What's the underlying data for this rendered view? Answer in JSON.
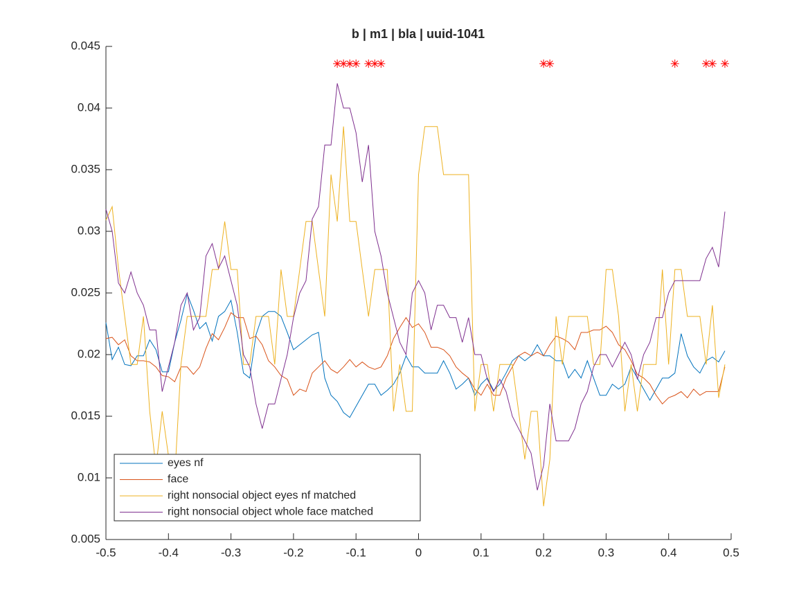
{
  "chart_data": {
    "type": "line",
    "title": "b | m1 | bla | uuid-1041",
    "x": [
      -0.5,
      -0.49,
      -0.48,
      -0.47,
      -0.46,
      -0.45,
      -0.44,
      -0.43,
      -0.42,
      -0.41,
      -0.4,
      -0.39,
      -0.38,
      -0.37,
      -0.36,
      -0.35,
      -0.34,
      -0.33,
      -0.32,
      -0.31,
      -0.3,
      -0.29,
      -0.28,
      -0.27,
      -0.26,
      -0.25,
      -0.24,
      -0.23,
      -0.22,
      -0.21,
      -0.2,
      -0.19,
      -0.18,
      -0.17,
      -0.16,
      -0.15,
      -0.14,
      -0.13,
      -0.12,
      -0.11,
      -0.1,
      -0.09,
      -0.08,
      -0.07,
      -0.06,
      -0.05,
      -0.04,
      -0.03,
      -0.02,
      -0.01,
      0,
      0.01,
      0.02,
      0.03,
      0.04,
      0.05,
      0.06,
      0.07,
      0.08,
      0.09,
      0.1,
      0.11,
      0.12,
      0.13,
      0.14,
      0.15,
      0.16,
      0.17,
      0.18,
      0.19,
      0.2,
      0.21,
      0.22,
      0.23,
      0.24,
      0.25,
      0.26,
      0.27,
      0.28,
      0.29,
      0.3,
      0.31,
      0.32,
      0.33,
      0.34,
      0.35,
      0.36,
      0.37,
      0.38,
      0.39,
      0.4,
      0.41,
      0.42,
      0.43,
      0.44,
      0.45,
      0.46,
      0.47,
      0.48,
      0.49
    ],
    "series": [
      {
        "name": "eyes nf",
        "color": "#0072bd",
        "values": [
          0.0226,
          0.0196,
          0.0206,
          0.0192,
          0.0191,
          0.0199,
          0.0199,
          0.0212,
          0.0204,
          0.0186,
          0.0186,
          0.021,
          0.0228,
          0.0249,
          0.0236,
          0.0221,
          0.0226,
          0.0211,
          0.0231,
          0.0235,
          0.0244,
          0.0218,
          0.0185,
          0.0181,
          0.0216,
          0.0231,
          0.0235,
          0.0235,
          0.0231,
          0.0218,
          0.0204,
          0.0208,
          0.0212,
          0.0216,
          0.0218,
          0.0181,
          0.0167,
          0.0162,
          0.0153,
          0.0149,
          0.0158,
          0.0167,
          0.0176,
          0.0176,
          0.0167,
          0.0171,
          0.0176,
          0.0185,
          0.0199,
          0.019,
          0.019,
          0.0185,
          0.0185,
          0.0185,
          0.0195,
          0.0185,
          0.0172,
          0.0176,
          0.0181,
          0.0167,
          0.0176,
          0.0181,
          0.0171,
          0.0176,
          0.0185,
          0.0195,
          0.0199,
          0.0195,
          0.0199,
          0.0208,
          0.0199,
          0.0199,
          0.0195,
          0.0195,
          0.0181,
          0.0188,
          0.0181,
          0.0195,
          0.0181,
          0.0167,
          0.0167,
          0.0176,
          0.0172,
          0.0176,
          0.019,
          0.0181,
          0.0172,
          0.0163,
          0.0172,
          0.0181,
          0.0181,
          0.0185,
          0.0217,
          0.0199,
          0.019,
          0.0185,
          0.0195,
          0.0198,
          0.0194,
          0.0203
        ]
      },
      {
        "name": "face",
        "color": "#d95319",
        "values": [
          0.0213,
          0.0214,
          0.0208,
          0.0212,
          0.0199,
          0.0195,
          0.0195,
          0.0194,
          0.019,
          0.0183,
          0.0182,
          0.0178,
          0.019,
          0.019,
          0.0184,
          0.019,
          0.0205,
          0.0217,
          0.0212,
          0.0222,
          0.0234,
          0.023,
          0.023,
          0.0213,
          0.0215,
          0.0208,
          0.0195,
          0.019,
          0.0183,
          0.018,
          0.0167,
          0.0172,
          0.017,
          0.0185,
          0.019,
          0.0195,
          0.0188,
          0.0185,
          0.019,
          0.0196,
          0.019,
          0.0194,
          0.019,
          0.0188,
          0.019,
          0.0199,
          0.0213,
          0.0222,
          0.023,
          0.0222,
          0.0225,
          0.0218,
          0.0206,
          0.0206,
          0.0204,
          0.0199,
          0.019,
          0.0185,
          0.0181,
          0.0172,
          0.0167,
          0.0176,
          0.0167,
          0.0167,
          0.0181,
          0.019,
          0.0199,
          0.0202,
          0.0199,
          0.0202,
          0.0199,
          0.0208,
          0.0215,
          0.0213,
          0.021,
          0.0204,
          0.0218,
          0.0218,
          0.022,
          0.022,
          0.0223,
          0.0218,
          0.0208,
          0.0204,
          0.0195,
          0.0184,
          0.0181,
          0.0176,
          0.0167,
          0.016,
          0.0165,
          0.0167,
          0.017,
          0.0165,
          0.0172,
          0.0167,
          0.017,
          0.017,
          0.017,
          0.019
        ]
      },
      {
        "name": "right nonsocial object eyes nf matched",
        "color": "#edb120",
        "values": [
          0.0309,
          0.032,
          0.027,
          0.0231,
          0.0192,
          0.0192,
          0.0231,
          0.0154,
          0.0108,
          0.0154,
          0.0118,
          0.01,
          0.0192,
          0.0231,
          0.0231,
          0.0231,
          0.0231,
          0.0269,
          0.0269,
          0.0308,
          0.0269,
          0.0269,
          0.0192,
          0.0192,
          0.0231,
          0.0231,
          0.0231,
          0.0192,
          0.0269,
          0.0231,
          0.0231,
          0.0269,
          0.0308,
          0.0308,
          0.0269,
          0.0231,
          0.0346,
          0.0308,
          0.0385,
          0.0308,
          0.0308,
          0.0269,
          0.0231,
          0.0269,
          0.0269,
          0.0269,
          0.0154,
          0.0192,
          0.0154,
          0.0154,
          0.0346,
          0.0385,
          0.0385,
          0.0385,
          0.0346,
          0.0346,
          0.0346,
          0.0346,
          0.0346,
          0.0154,
          0.0192,
          0.0192,
          0.0154,
          0.0192,
          0.0192,
          0.0192,
          0.0154,
          0.0115,
          0.0154,
          0.0154,
          0.0077,
          0.0115,
          0.0231,
          0.0192,
          0.0231,
          0.0231,
          0.0231,
          0.0231,
          0.0192,
          0.0192,
          0.0269,
          0.0269,
          0.0231,
          0.0154,
          0.0192,
          0.0154,
          0.0192,
          0.0192,
          0.0192,
          0.0269,
          0.0192,
          0.0269,
          0.0269,
          0.0231,
          0.0231,
          0.0231,
          0.0192,
          0.024,
          0.0165,
          0.0192
        ]
      },
      {
        "name": "right nonsocial object whole face matched",
        "color": "#7e2f8e",
        "values": [
          0.0318,
          0.03,
          0.0258,
          0.025,
          0.0267,
          0.025,
          0.024,
          0.022,
          0.022,
          0.017,
          0.019,
          0.021,
          0.024,
          0.025,
          0.022,
          0.023,
          0.028,
          0.029,
          0.027,
          0.028,
          0.026,
          0.024,
          0.02,
          0.019,
          0.016,
          0.014,
          0.016,
          0.016,
          0.018,
          0.02,
          0.023,
          0.025,
          0.026,
          0.031,
          0.032,
          0.037,
          0.037,
          0.042,
          0.04,
          0.04,
          0.038,
          0.034,
          0.037,
          0.03,
          0.028,
          0.025,
          0.023,
          0.021,
          0.02,
          0.025,
          0.026,
          0.025,
          0.022,
          0.024,
          0.024,
          0.023,
          0.023,
          0.021,
          0.023,
          0.02,
          0.02,
          0.018,
          0.017,
          0.018,
          0.017,
          0.015,
          0.014,
          0.013,
          0.012,
          0.009,
          0.011,
          0.016,
          0.013,
          0.013,
          0.013,
          0.014,
          0.016,
          0.017,
          0.019,
          0.02,
          0.02,
          0.019,
          0.02,
          0.021,
          0.02,
          0.018,
          0.02,
          0.021,
          0.023,
          0.023,
          0.025,
          0.026,
          0.026,
          0.026,
          0.026,
          0.026,
          0.0278,
          0.0287,
          0.0271,
          0.0316
        ]
      }
    ],
    "markers": {
      "color": "#ff0000",
      "x": [
        -0.13,
        -0.12,
        -0.11,
        -0.1,
        -0.08,
        -0.07,
        -0.06,
        0.2,
        0.21,
        0.41,
        0.46,
        0.47,
        0.49
      ],
      "y": [
        0.0436,
        0.0436,
        0.0436,
        0.0436,
        0.0436,
        0.0436,
        0.0436,
        0.0436,
        0.0436,
        0.0436,
        0.0436,
        0.0436,
        0.0436
      ]
    },
    "xlim": [
      -0.5,
      0.5
    ],
    "xticks": [
      -0.5,
      -0.4,
      -0.3,
      -0.2,
      -0.1,
      0,
      0.1,
      0.2,
      0.3,
      0.4,
      0.5
    ],
    "ylim": [
      0.005,
      0.045
    ],
    "yticks": [
      0.005,
      0.01,
      0.015,
      0.02,
      0.025,
      0.03,
      0.035,
      0.04,
      0.045
    ],
    "grid": false,
    "legend": "lower left"
  }
}
